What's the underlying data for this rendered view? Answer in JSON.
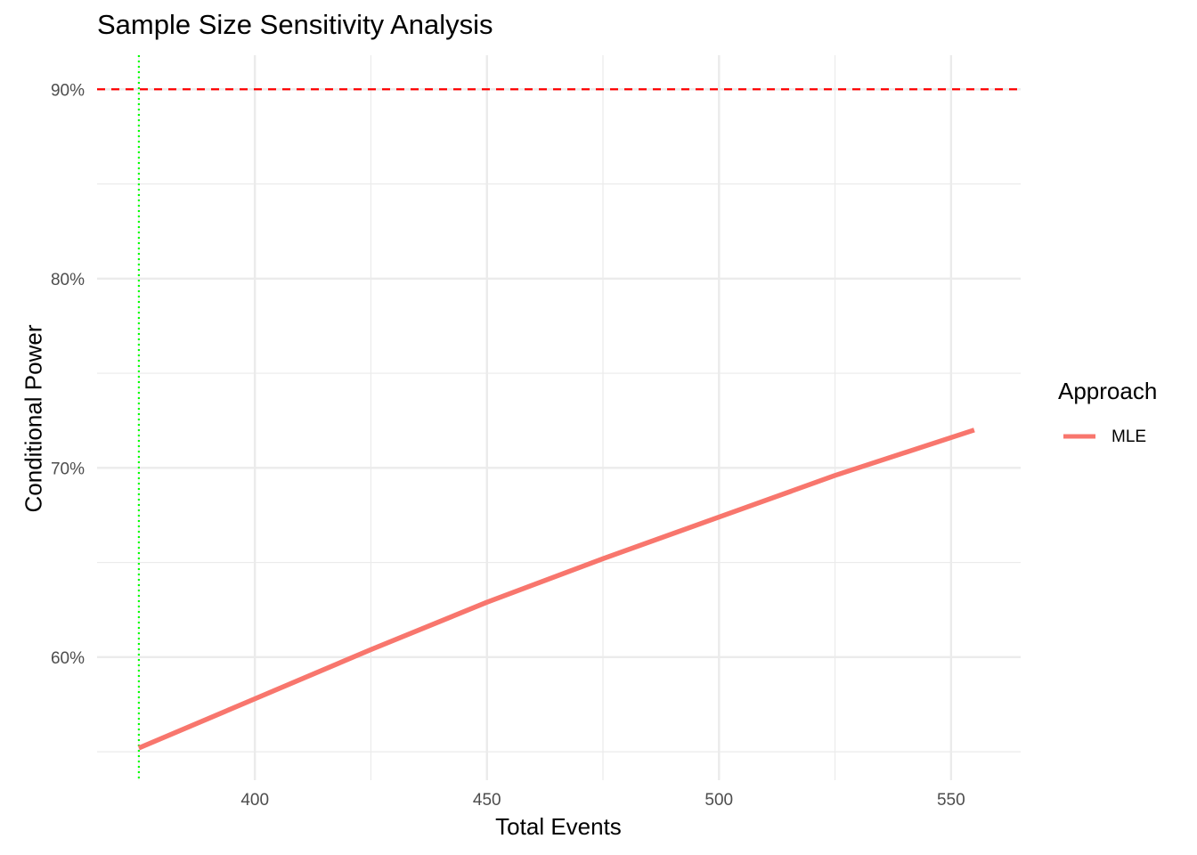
{
  "chart_data": {
    "type": "line",
    "title": "Sample Size Sensitivity Analysis",
    "xlabel": "Total Events",
    "ylabel": "Conditional Power",
    "xlim": [
      366,
      565
    ],
    "ylim": [
      0.535,
      0.918
    ],
    "x_ticks": [
      400,
      450,
      500,
      550
    ],
    "x_tick_labels": [
      "400",
      "450",
      "500",
      "550"
    ],
    "y_ticks": [
      0.6,
      0.7,
      0.8,
      0.9
    ],
    "y_tick_labels": [
      "60%",
      "70%",
      "80%",
      "90%"
    ],
    "grid": true,
    "legend_title": "Approach",
    "legend_placement": "right",
    "series": [
      {
        "name": "MLE",
        "color": "#F8766D",
        "x": [
          375,
          400,
          425,
          450,
          475,
          500,
          525,
          555
        ],
        "y": [
          0.552,
          0.578,
          0.604,
          0.629,
          0.652,
          0.674,
          0.696,
          0.72
        ]
      }
    ],
    "reference_lines": [
      {
        "orientation": "horizontal",
        "value": 0.9,
        "style": "dashed",
        "color": "#FF0000"
      },
      {
        "orientation": "vertical",
        "value": 375,
        "style": "dotted",
        "color": "#00FF00"
      }
    ]
  }
}
